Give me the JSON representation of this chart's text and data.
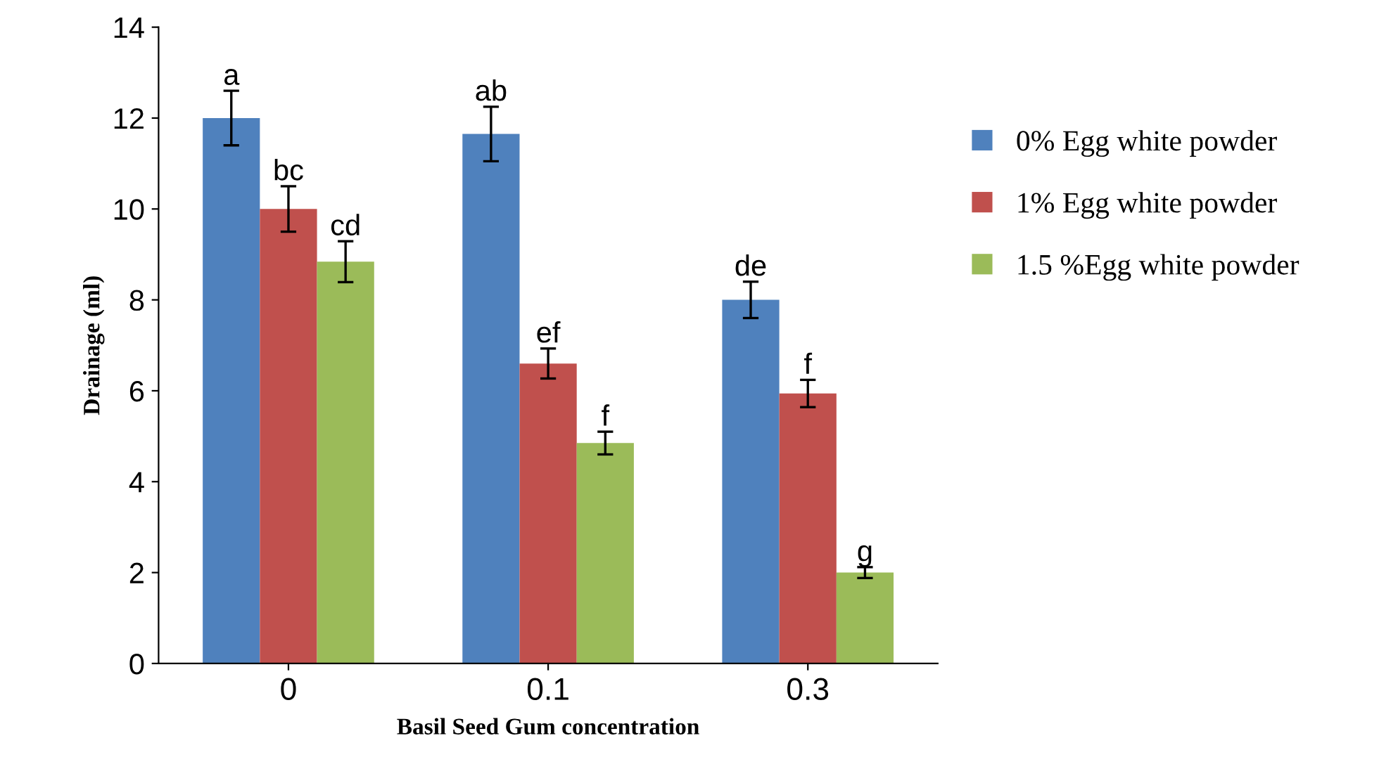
{
  "chart_data": {
    "type": "bar",
    "xlabel": "Basil Seed Gum concentration",
    "ylabel": "Drainage (ml)",
    "categories": [
      "0",
      "0.1",
      "0.3"
    ],
    "series": [
      {
        "name": "0% Egg white powder",
        "color": "#4f81bd",
        "values": [
          12,
          11.65,
          8
        ],
        "errors": [
          0.6,
          0.6,
          0.4
        ]
      },
      {
        "name": "1% Egg white powder",
        "color": "#c0504d",
        "values": [
          10,
          6.6,
          5.94
        ],
        "errors": [
          0.5,
          0.33,
          0.3
        ]
      },
      {
        "name": "1.5 %Egg white powder",
        "color": "#9bbb59",
        "values": [
          8.84,
          4.85,
          2
        ],
        "errors": [
          0.45,
          0.25,
          0.12
        ]
      }
    ],
    "ylim": [
      0,
      14
    ],
    "yticks": [
      0,
      2,
      4,
      6,
      8,
      10,
      12,
      14
    ],
    "grid": false,
    "legend": "right",
    "annotations": [
      "a",
      "bc",
      "cd",
      "ab",
      "ef",
      "f",
      "de",
      "f",
      "g"
    ]
  }
}
